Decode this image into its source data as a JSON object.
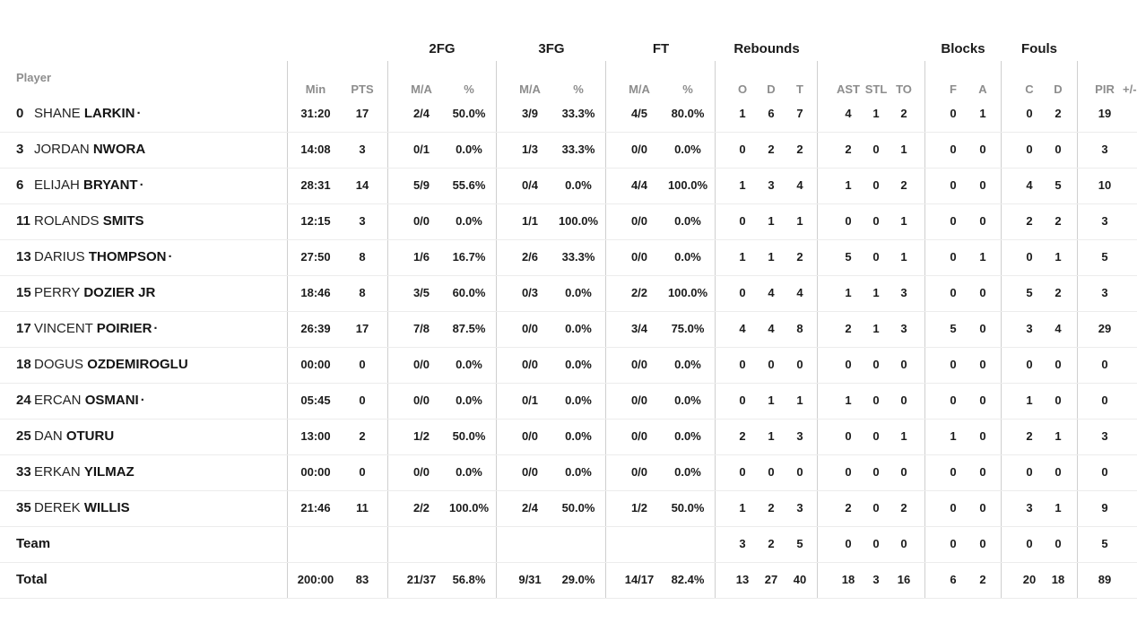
{
  "colors": {
    "text_dark": "#1b1b1b",
    "header_gray": "#8d8d8d",
    "vline": "#cfcfcf",
    "hline": "#ececec",
    "background": "#ffffff"
  },
  "table": {
    "starter_dot": "·",
    "group_headers": {
      "fg2": "2FG",
      "fg3": "3FG",
      "ft": "FT",
      "rebounds": "Rebounds",
      "blocks": "Blocks",
      "fouls": "Fouls"
    },
    "column_headers": {
      "player": "Player",
      "min": "Min",
      "pts": "PTS",
      "ma": "M/A",
      "pct": "%",
      "reb_o": "O",
      "reb_d": "D",
      "reb_t": "T",
      "ast": "AST",
      "stl": "STL",
      "to": "TO",
      "blk_f": "F",
      "blk_a": "A",
      "foul_c": "C",
      "foul_d": "D",
      "pir": "PIR",
      "plus_minus": "+/-"
    },
    "rows": [
      {
        "number": "0",
        "first": "SHANE",
        "last": "LARKIN",
        "starter": true,
        "min": "31:20",
        "pts": "17",
        "fg2_ma": "2/4",
        "fg2_pct": "50.0%",
        "fg3_ma": "3/9",
        "fg3_pct": "33.3%",
        "ft_ma": "4/5",
        "ft_pct": "80.0%",
        "reb_o": "1",
        "reb_d": "6",
        "reb_t": "7",
        "ast": "4",
        "stl": "1",
        "to": "2",
        "blk_f": "0",
        "blk_a": "1",
        "foul_c": "0",
        "foul_d": "2",
        "pir": "19"
      },
      {
        "number": "3",
        "first": "JORDAN",
        "last": "NWORA",
        "starter": false,
        "min": "14:08",
        "pts": "3",
        "fg2_ma": "0/1",
        "fg2_pct": "0.0%",
        "fg3_ma": "1/3",
        "fg3_pct": "33.3%",
        "ft_ma": "0/0",
        "ft_pct": "0.0%",
        "reb_o": "0",
        "reb_d": "2",
        "reb_t": "2",
        "ast": "2",
        "stl": "0",
        "to": "1",
        "blk_f": "0",
        "blk_a": "0",
        "foul_c": "0",
        "foul_d": "0",
        "pir": "3"
      },
      {
        "number": "6",
        "first": "ELIJAH",
        "last": "BRYANT",
        "starter": true,
        "min": "28:31",
        "pts": "14",
        "fg2_ma": "5/9",
        "fg2_pct": "55.6%",
        "fg3_ma": "0/4",
        "fg3_pct": "0.0%",
        "ft_ma": "4/4",
        "ft_pct": "100.0%",
        "reb_o": "1",
        "reb_d": "3",
        "reb_t": "4",
        "ast": "1",
        "stl": "0",
        "to": "2",
        "blk_f": "0",
        "blk_a": "0",
        "foul_c": "4",
        "foul_d": "5",
        "pir": "10"
      },
      {
        "number": "11",
        "first": "ROLANDS",
        "last": "SMITS",
        "starter": false,
        "min": "12:15",
        "pts": "3",
        "fg2_ma": "0/0",
        "fg2_pct": "0.0%",
        "fg3_ma": "1/1",
        "fg3_pct": "100.0%",
        "ft_ma": "0/0",
        "ft_pct": "0.0%",
        "reb_o": "0",
        "reb_d": "1",
        "reb_t": "1",
        "ast": "0",
        "stl": "0",
        "to": "1",
        "blk_f": "0",
        "blk_a": "0",
        "foul_c": "2",
        "foul_d": "2",
        "pir": "3"
      },
      {
        "number": "13",
        "first": "DARIUS",
        "last": "THOMPSON",
        "starter": true,
        "min": "27:50",
        "pts": "8",
        "fg2_ma": "1/6",
        "fg2_pct": "16.7%",
        "fg3_ma": "2/6",
        "fg3_pct": "33.3%",
        "ft_ma": "0/0",
        "ft_pct": "0.0%",
        "reb_o": "1",
        "reb_d": "1",
        "reb_t": "2",
        "ast": "5",
        "stl": "0",
        "to": "1",
        "blk_f": "0",
        "blk_a": "1",
        "foul_c": "0",
        "foul_d": "1",
        "pir": "5"
      },
      {
        "number": "15",
        "first": "PERRY",
        "last": "DOZIER JR",
        "starter": false,
        "min": "18:46",
        "pts": "8",
        "fg2_ma": "3/5",
        "fg2_pct": "60.0%",
        "fg3_ma": "0/3",
        "fg3_pct": "0.0%",
        "ft_ma": "2/2",
        "ft_pct": "100.0%",
        "reb_o": "0",
        "reb_d": "4",
        "reb_t": "4",
        "ast": "1",
        "stl": "1",
        "to": "3",
        "blk_f": "0",
        "blk_a": "0",
        "foul_c": "5",
        "foul_d": "2",
        "pir": "3"
      },
      {
        "number": "17",
        "first": "VINCENT",
        "last": "POIRIER",
        "starter": true,
        "min": "26:39",
        "pts": "17",
        "fg2_ma": "7/8",
        "fg2_pct": "87.5%",
        "fg3_ma": "0/0",
        "fg3_pct": "0.0%",
        "ft_ma": "3/4",
        "ft_pct": "75.0%",
        "reb_o": "4",
        "reb_d": "4",
        "reb_t": "8",
        "ast": "2",
        "stl": "1",
        "to": "3",
        "blk_f": "5",
        "blk_a": "0",
        "foul_c": "3",
        "foul_d": "4",
        "pir": "29"
      },
      {
        "number": "18",
        "first": "DOGUS",
        "last": "OZDEMIROGLU",
        "starter": false,
        "min": "00:00",
        "pts": "0",
        "fg2_ma": "0/0",
        "fg2_pct": "0.0%",
        "fg3_ma": "0/0",
        "fg3_pct": "0.0%",
        "ft_ma": "0/0",
        "ft_pct": "0.0%",
        "reb_o": "0",
        "reb_d": "0",
        "reb_t": "0",
        "ast": "0",
        "stl": "0",
        "to": "0",
        "blk_f": "0",
        "blk_a": "0",
        "foul_c": "0",
        "foul_d": "0",
        "pir": "0"
      },
      {
        "number": "24",
        "first": "ERCAN",
        "last": "OSMANI",
        "starter": true,
        "min": "05:45",
        "pts": "0",
        "fg2_ma": "0/0",
        "fg2_pct": "0.0%",
        "fg3_ma": "0/1",
        "fg3_pct": "0.0%",
        "ft_ma": "0/0",
        "ft_pct": "0.0%",
        "reb_o": "0",
        "reb_d": "1",
        "reb_t": "1",
        "ast": "1",
        "stl": "0",
        "to": "0",
        "blk_f": "0",
        "blk_a": "0",
        "foul_c": "1",
        "foul_d": "0",
        "pir": "0"
      },
      {
        "number": "25",
        "first": "DAN",
        "last": "OTURU",
        "starter": false,
        "min": "13:00",
        "pts": "2",
        "fg2_ma": "1/2",
        "fg2_pct": "50.0%",
        "fg3_ma": "0/0",
        "fg3_pct": "0.0%",
        "ft_ma": "0/0",
        "ft_pct": "0.0%",
        "reb_o": "2",
        "reb_d": "1",
        "reb_t": "3",
        "ast": "0",
        "stl": "0",
        "to": "1",
        "blk_f": "1",
        "blk_a": "0",
        "foul_c": "2",
        "foul_d": "1",
        "pir": "3"
      },
      {
        "number": "33",
        "first": "ERKAN",
        "last": "YILMAZ",
        "starter": false,
        "min": "00:00",
        "pts": "0",
        "fg2_ma": "0/0",
        "fg2_pct": "0.0%",
        "fg3_ma": "0/0",
        "fg3_pct": "0.0%",
        "ft_ma": "0/0",
        "ft_pct": "0.0%",
        "reb_o": "0",
        "reb_d": "0",
        "reb_t": "0",
        "ast": "0",
        "stl": "0",
        "to": "0",
        "blk_f": "0",
        "blk_a": "0",
        "foul_c": "0",
        "foul_d": "0",
        "pir": "0"
      },
      {
        "number": "35",
        "first": "DEREK",
        "last": "WILLIS",
        "starter": false,
        "min": "21:46",
        "pts": "11",
        "fg2_ma": "2/2",
        "fg2_pct": "100.0%",
        "fg3_ma": "2/4",
        "fg3_pct": "50.0%",
        "ft_ma": "1/2",
        "ft_pct": "50.0%",
        "reb_o": "1",
        "reb_d": "2",
        "reb_t": "3",
        "ast": "2",
        "stl": "0",
        "to": "2",
        "blk_f": "0",
        "blk_a": "0",
        "foul_c": "3",
        "foul_d": "1",
        "pir": "9"
      },
      {
        "label": "Team",
        "min": "",
        "pts": "",
        "fg2_ma": "",
        "fg2_pct": "",
        "fg3_ma": "",
        "fg3_pct": "",
        "ft_ma": "",
        "ft_pct": "",
        "reb_o": "3",
        "reb_d": "2",
        "reb_t": "5",
        "ast": "0",
        "stl": "0",
        "to": "0",
        "blk_f": "0",
        "blk_a": "0",
        "foul_c": "0",
        "foul_d": "0",
        "pir": "5"
      },
      {
        "label": "Total",
        "min": "200:00",
        "pts": "83",
        "fg2_ma": "21/37",
        "fg2_pct": "56.8%",
        "fg3_ma": "9/31",
        "fg3_pct": "29.0%",
        "ft_ma": "14/17",
        "ft_pct": "82.4%",
        "reb_o": "13",
        "reb_d": "27",
        "reb_t": "40",
        "ast": "18",
        "stl": "3",
        "to": "16",
        "blk_f": "6",
        "blk_a": "2",
        "foul_c": "20",
        "foul_d": "18",
        "pir": "89"
      }
    ]
  }
}
